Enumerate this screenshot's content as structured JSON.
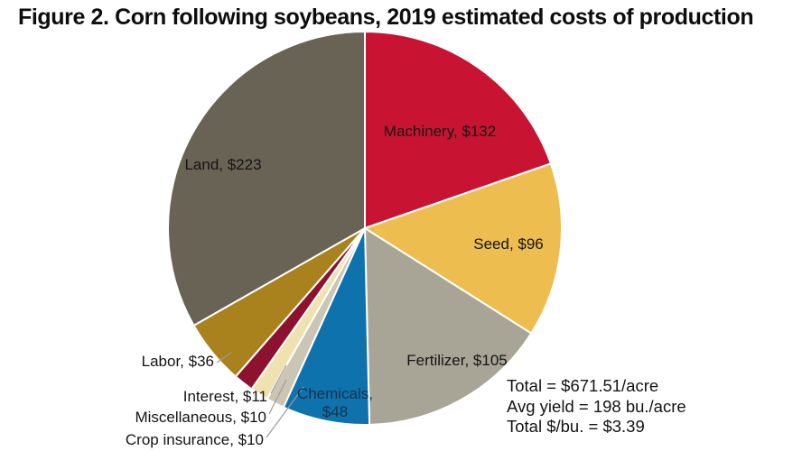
{
  "chart_data": {
    "type": "pie",
    "title": "Figure 2. Corn following soybeans, 2019 estimated costs of production",
    "units": "$/acre",
    "direction": "clockwise",
    "start_angle_deg": 0,
    "legend_position": "none",
    "labels_on_slices": true,
    "background_color": "#ffffff",
    "slice_gap_color": "#ffffff",
    "leader_line_color": "#9c9c9c",
    "segments": [
      {
        "name": "Machinery",
        "value": 132,
        "label": "Machinery, $132",
        "color": "#c81432"
      },
      {
        "name": "Seed",
        "value": 96,
        "label": "Seed, $96",
        "color": "#edbe4f"
      },
      {
        "name": "Fertilizer",
        "value": 105,
        "label": "Fertilizer, $105",
        "color": "#a8a496"
      },
      {
        "name": "Chemicals",
        "value": 48,
        "label": "Chemicals, $48",
        "color": "#0e72ad",
        "label_color": "#16324d"
      },
      {
        "name": "Crop insurance",
        "value": 10,
        "label": "Crop insurance, $10",
        "color": "#cbc6b3"
      },
      {
        "name": "Miscellaneous",
        "value": 10,
        "label": "Miscellaneous, $10",
        "color": "#f0e1b0"
      },
      {
        "name": "Interest",
        "value": 11,
        "label": "Interest, $11",
        "color": "#8c1230"
      },
      {
        "name": "Labor",
        "value": 36,
        "label": "Labor, $36",
        "color": "#a9821e"
      },
      {
        "name": "Land",
        "value": 223,
        "label": "Land, $223",
        "color": "#696355"
      }
    ],
    "total_value": 671,
    "annotations": [
      "Total = $671.51/acre",
      "Avg yield = 198 bu./acre",
      "Total $/bu. = $3.39"
    ]
  }
}
